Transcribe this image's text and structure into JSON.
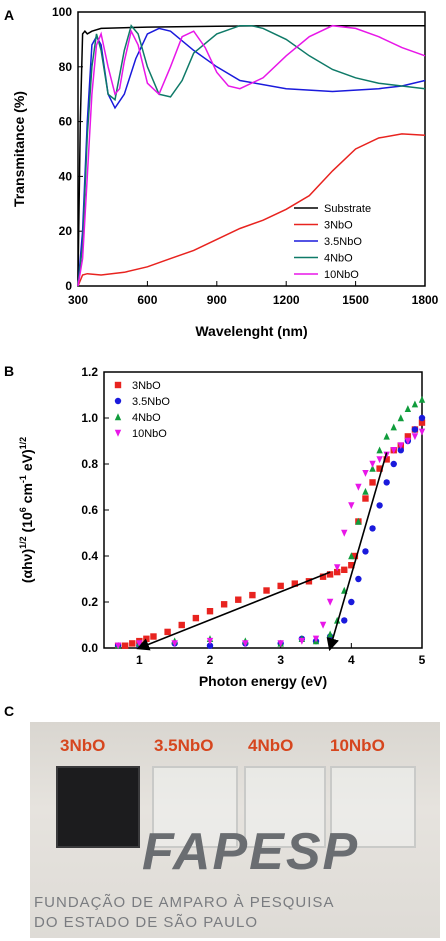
{
  "panels": {
    "a_label": "A",
    "b_label": "B",
    "c_label": "C"
  },
  "chart_data": [
    {
      "type": "line",
      "xlabel": "Wavelenght (nm)",
      "ylabel": "Transmitance (%)",
      "xlim": [
        300,
        1800
      ],
      "ylim": [
        0,
        100
      ],
      "xticks": [
        300,
        600,
        900,
        1200,
        1500,
        1800
      ],
      "yticks": [
        0,
        20,
        40,
        60,
        80,
        100
      ],
      "legend_position": "bottom-right",
      "series": [
        {
          "name": "Substrate",
          "color": "#000000",
          "x": [
            300,
            310,
            320,
            330,
            340,
            360,
            400,
            600,
            900,
            1200,
            1500,
            1800
          ],
          "y": [
            2,
            60,
            92,
            93,
            92,
            93,
            94,
            94.5,
            94.8,
            95,
            95,
            95
          ]
        },
        {
          "name": "3NbO",
          "color": "#e8231f",
          "x": [
            300,
            320,
            340,
            400,
            500,
            600,
            700,
            800,
            900,
            1000,
            1100,
            1200,
            1300,
            1400,
            1500,
            1600,
            1700,
            1800
          ],
          "y": [
            0,
            4,
            4.5,
            4,
            5,
            7,
            10,
            13,
            17,
            21,
            24,
            28,
            33,
            42,
            50,
            54,
            55.5,
            55
          ]
        },
        {
          "name": "3.5NbO",
          "color": "#1a1adc",
          "x": [
            300,
            320,
            340,
            360,
            380,
            400,
            430,
            460,
            500,
            550,
            600,
            650,
            700,
            800,
            900,
            1000,
            1200,
            1400,
            1600,
            1700,
            1800
          ],
          "y": [
            0,
            20,
            60,
            88,
            91,
            88,
            70,
            65,
            70,
            83,
            92,
            94,
            93,
            86,
            80,
            75,
            72,
            71,
            72,
            73,
            75
          ]
        },
        {
          "name": "4NbO",
          "color": "#0f7a68",
          "x": [
            300,
            320,
            340,
            360,
            380,
            400,
            430,
            460,
            500,
            530,
            560,
            600,
            650,
            700,
            750,
            800,
            900,
            1000,
            1050,
            1100,
            1200,
            1300,
            1400,
            1500,
            1600,
            1700,
            1800
          ],
          "y": [
            0,
            15,
            55,
            80,
            92,
            86,
            70,
            68,
            86,
            95,
            92,
            80,
            70,
            69,
            75,
            85,
            92,
            95,
            95,
            94,
            90,
            84,
            79,
            76,
            74,
            73,
            72
          ]
        },
        {
          "name": "10NbO",
          "color": "#e817e8",
          "x": [
            300,
            320,
            340,
            360,
            380,
            400,
            430,
            460,
            480,
            500,
            530,
            560,
            600,
            650,
            700,
            750,
            800,
            850,
            900,
            950,
            1000,
            1100,
            1200,
            1300,
            1400,
            1500,
            1600,
            1700,
            1800
          ],
          "y": [
            0,
            10,
            40,
            70,
            88,
            92,
            80,
            70,
            72,
            82,
            93,
            88,
            74,
            70,
            80,
            91,
            93,
            87,
            78,
            73,
            72,
            76,
            84,
            91,
            95,
            94,
            91,
            87,
            84
          ]
        }
      ]
    },
    {
      "type": "scatter",
      "xlabel": "Photon energy (eV)",
      "ylabel_parts": [
        "(αhν)",
        "1/2",
        " (10",
        "6",
        " cm",
        "-1",
        " eV)",
        "1/2"
      ],
      "xlim": [
        0.5,
        5
      ],
      "ylim": [
        0,
        1.2
      ],
      "xticks": [
        1,
        2,
        3,
        4,
        5
      ],
      "yticks": [
        0.0,
        0.2,
        0.4,
        0.6,
        0.8,
        1.0,
        1.2
      ],
      "ytick_labels": [
        "0.0",
        "0.2",
        "0.4",
        "0.6",
        "0.8",
        "1.0",
        "1.2"
      ],
      "legend_position": "top-left",
      "series": [
        {
          "name": "3NbO",
          "color": "#e8231f",
          "marker": "square",
          "x": [
            0.7,
            0.8,
            0.9,
            1.0,
            1.1,
            1.2,
            1.4,
            1.6,
            1.8,
            2.0,
            2.2,
            2.4,
            2.6,
            2.8,
            3.0,
            3.2,
            3.4,
            3.6,
            3.7,
            3.8,
            3.9,
            4.0,
            4.05,
            4.1,
            4.2,
            4.3,
            4.4,
            4.5,
            4.6,
            4.7,
            4.8,
            4.9,
            5.0
          ],
          "y": [
            0.01,
            0.01,
            0.02,
            0.03,
            0.04,
            0.05,
            0.07,
            0.1,
            0.13,
            0.16,
            0.19,
            0.21,
            0.23,
            0.25,
            0.27,
            0.28,
            0.29,
            0.31,
            0.32,
            0.33,
            0.34,
            0.36,
            0.4,
            0.55,
            0.65,
            0.72,
            0.78,
            0.82,
            0.86,
            0.88,
            0.92,
            0.95,
            0.98
          ]
        },
        {
          "name": "3.5NbO",
          "color": "#1a1adc",
          "marker": "circle",
          "x": [
            0.7,
            1.0,
            1.5,
            2.0,
            2.5,
            3.0,
            3.3,
            3.5,
            3.7,
            3.9,
            4.0,
            4.1,
            4.2,
            4.3,
            4.4,
            4.5,
            4.6,
            4.7,
            4.8,
            4.9,
            5.0
          ],
          "y": [
            0.01,
            0.01,
            0.02,
            0.01,
            0.02,
            0.02,
            0.04,
            0.03,
            0.05,
            0.12,
            0.2,
            0.3,
            0.42,
            0.52,
            0.62,
            0.72,
            0.8,
            0.86,
            0.9,
            0.95,
            1.0
          ]
        },
        {
          "name": "4NbO",
          "color": "#109c3c",
          "marker": "triangle",
          "x": [
            0.7,
            1.0,
            1.5,
            2.0,
            2.5,
            3.0,
            3.3,
            3.5,
            3.7,
            3.8,
            3.9,
            4.0,
            4.1,
            4.2,
            4.3,
            4.4,
            4.5,
            4.6,
            4.7,
            4.8,
            4.9,
            5.0
          ],
          "y": [
            0.01,
            0.02,
            0.03,
            0.04,
            0.03,
            0.02,
            0.04,
            0.03,
            0.06,
            0.12,
            0.25,
            0.4,
            0.55,
            0.68,
            0.78,
            0.86,
            0.92,
            0.96,
            1.0,
            1.04,
            1.06,
            1.08
          ]
        },
        {
          "name": "10NbO",
          "color": "#e817e8",
          "marker": "triangle-down",
          "x": [
            0.7,
            1.0,
            1.5,
            2.0,
            2.5,
            3.0,
            3.3,
            3.5,
            3.6,
            3.7,
            3.8,
            3.9,
            4.0,
            4.1,
            4.2,
            4.3,
            4.4,
            4.5,
            4.6,
            4.7,
            4.8,
            4.9,
            5.0
          ],
          "y": [
            0.01,
            0.02,
            0.02,
            0.03,
            0.02,
            0.02,
            0.03,
            0.04,
            0.1,
            0.2,
            0.35,
            0.5,
            0.62,
            0.7,
            0.76,
            0.8,
            0.82,
            0.84,
            0.86,
            0.88,
            0.9,
            0.92,
            0.94
          ]
        }
      ],
      "fit_lines": [
        {
          "color": "#000000",
          "x": [
            1.0,
            3.7
          ],
          "y": [
            0.0,
            0.33
          ]
        },
        {
          "color": "#000000",
          "x": [
            3.7,
            4.5
          ],
          "y": [
            0.0,
            0.85
          ]
        }
      ]
    }
  ],
  "photo": {
    "sample_labels": [
      "3NbO",
      "3.5NbO",
      "4NbO",
      "10NbO"
    ],
    "logo_text": "FAPESP",
    "logo_line1": "FUNDAÇÃO DE AMPARO À PESQUISA",
    "logo_line2": "DO ESTADO DE SÃO PAULO"
  }
}
